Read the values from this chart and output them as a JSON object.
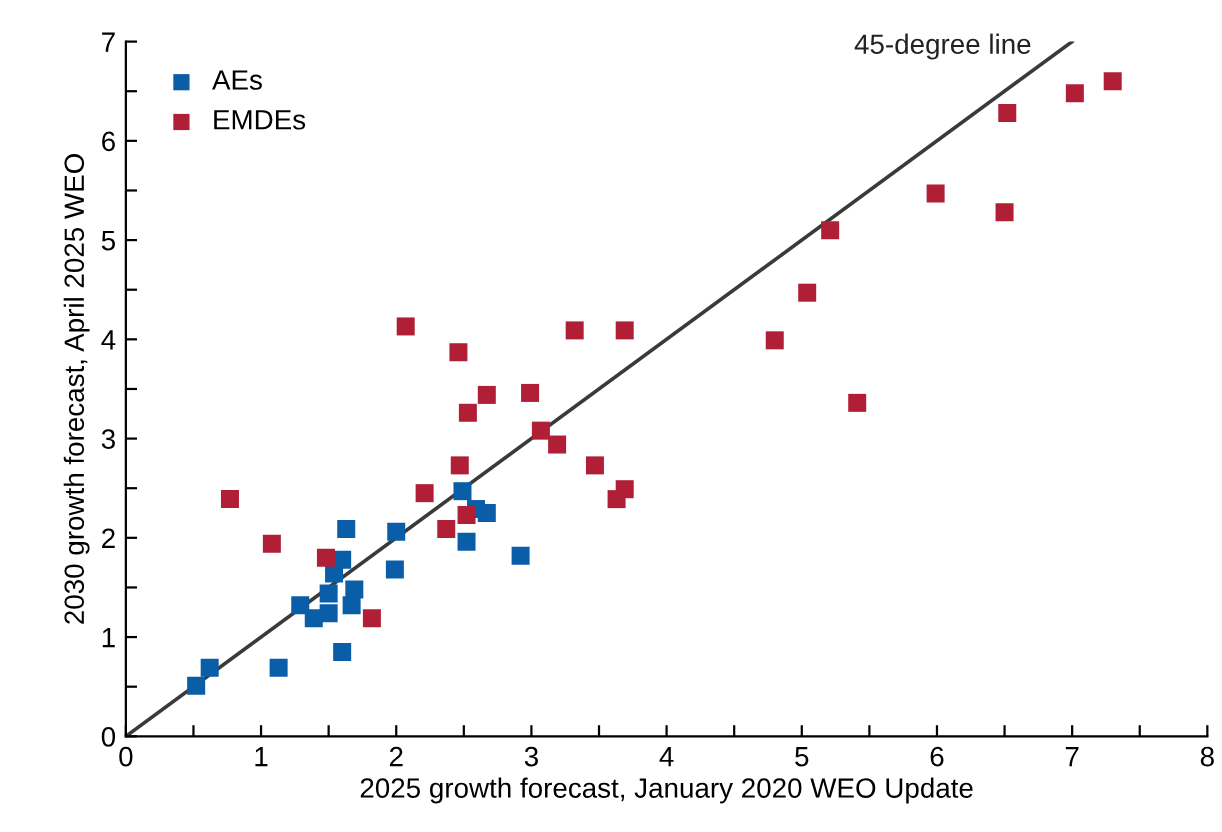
{
  "chart_data": {
    "type": "scatter",
    "xlabel": "2025 growth forecast, January 2020 WEO Update",
    "ylabel": "2030 growth forecast, April 2025 WEO",
    "marker": "square",
    "legend": "top left",
    "grid": false,
    "xlim": [
      0,
      8
    ],
    "ylim": [
      0,
      7
    ],
    "xticks": [
      0,
      {
        "value": 0.5,
        "label": null
      },
      1,
      {
        "value": 1.5,
        "label": null
      },
      2,
      {
        "value": 2.5,
        "label": null
      },
      3,
      {
        "value": 3.5,
        "label": null
      },
      4,
      {
        "value": 4.5,
        "label": null
      },
      5,
      {
        "value": 5.5,
        "label": null
      },
      6,
      {
        "value": 6.5,
        "label": null
      },
      7,
      {
        "value": 7.5,
        "label": null
      },
      8
    ],
    "yticks": [
      0,
      {
        "value": 0.5,
        "label": null
      },
      1,
      {
        "value": 1.5,
        "label": null
      },
      2,
      {
        "value": 2.5,
        "label": null
      },
      3,
      {
        "value": 3.5,
        "label": null
      },
      4,
      {
        "value": 4.5,
        "label": null
      },
      5,
      {
        "value": 5.5,
        "label": null
      },
      6,
      {
        "value": 6.5,
        "label": null
      },
      7
    ],
    "series": [
      {
        "name": "45-degree line",
        "type": "line",
        "color": "#3a3a3a",
        "marker": "none",
        "x": [
          0,
          7
        ],
        "values": [
          0,
          7
        ]
      },
      {
        "name": "AEs",
        "color": "#0a5ea8",
        "x": [
          0.52,
          0.62,
          1.13,
          1.6,
          1.29,
          1.39,
          1.5,
          1.5,
          1.67,
          1.69,
          1.54,
          1.6,
          1.63,
          1.99,
          2.0,
          2.49,
          2.59,
          2.67,
          2.52,
          2.92
        ],
        "values": [
          0.51,
          0.69,
          0.69,
          0.85,
          1.32,
          1.19,
          1.24,
          1.44,
          1.32,
          1.48,
          1.64,
          1.78,
          2.09,
          1.68,
          2.06,
          2.47,
          2.29,
          2.25,
          1.96,
          1.82
        ]
      },
      {
        "name": "EMDEs",
        "color": "#b01f35",
        "x": [
          0.77,
          1.08,
          1.48,
          1.82,
          2.07,
          2.46,
          2.67,
          2.53,
          2.99,
          3.07,
          3.19,
          3.32,
          3.47,
          2.47,
          2.21,
          2.37,
          2.52,
          3.69,
          4.8,
          5.04,
          5.41,
          3.69,
          3.63,
          6.52,
          7.02,
          7.3,
          5.99,
          6.5,
          5.21
        ],
        "values": [
          2.39,
          1.94,
          1.8,
          1.19,
          4.13,
          3.87,
          3.44,
          3.26,
          3.46,
          3.08,
          2.94,
          4.09,
          2.73,
          2.73,
          2.45,
          2.09,
          2.23,
          4.09,
          3.99,
          4.47,
          3.36,
          2.49,
          2.39,
          6.28,
          6.48,
          6.6,
          5.47,
          5.28,
          5.1
        ]
      }
    ]
  }
}
